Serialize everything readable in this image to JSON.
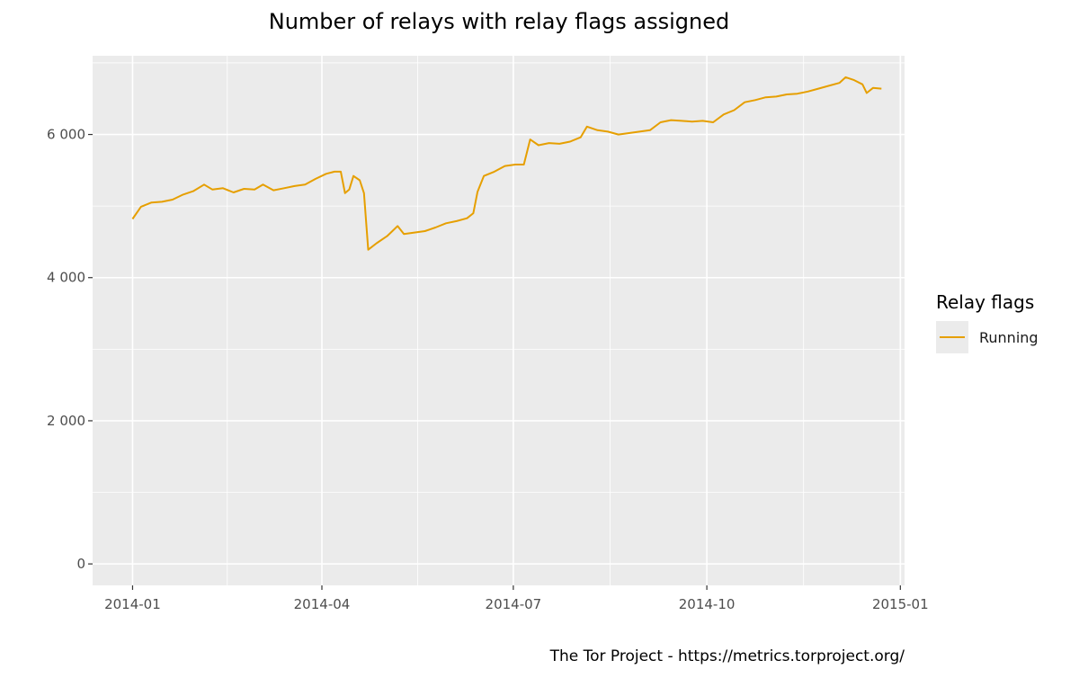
{
  "chart_data": {
    "type": "line",
    "title": "Number of relays with relay flags assigned",
    "xlabel": "",
    "ylabel": "",
    "caption": "The Tor Project - https://metrics.torproject.org/",
    "x_ticks": [
      "2014-01",
      "2014-04",
      "2014-07",
      "2014-10",
      "2015-01"
    ],
    "y_ticks": [
      0,
      2000,
      4000,
      6000
    ],
    "y_tick_labels": [
      "0",
      "2 000",
      "4 000",
      "6 000"
    ],
    "xlim": [
      "2013-12-13",
      "2015-01-03"
    ],
    "ylim": [
      -300,
      7100
    ],
    "grid": true,
    "legend": {
      "title": "Relay flags",
      "position": "right"
    },
    "series": [
      {
        "name": "Running",
        "color": "#E69F00",
        "points": [
          [
            "2014-01-01",
            4820
          ],
          [
            "2014-01-05",
            4990
          ],
          [
            "2014-01-10",
            5050
          ],
          [
            "2014-01-15",
            5060
          ],
          [
            "2014-01-20",
            5090
          ],
          [
            "2014-01-25",
            5160
          ],
          [
            "2014-01-30",
            5210
          ],
          [
            "2014-02-04",
            5300
          ],
          [
            "2014-02-08",
            5230
          ],
          [
            "2014-02-13",
            5250
          ],
          [
            "2014-02-18",
            5190
          ],
          [
            "2014-02-23",
            5240
          ],
          [
            "2014-02-28",
            5230
          ],
          [
            "2014-03-04",
            5300
          ],
          [
            "2014-03-09",
            5220
          ],
          [
            "2014-03-14",
            5250
          ],
          [
            "2014-03-19",
            5280
          ],
          [
            "2014-03-24",
            5300
          ],
          [
            "2014-03-29",
            5380
          ],
          [
            "2014-04-03",
            5450
          ],
          [
            "2014-04-07",
            5480
          ],
          [
            "2014-04-10",
            5480
          ],
          [
            "2014-04-12",
            5180
          ],
          [
            "2014-04-14",
            5230
          ],
          [
            "2014-04-16",
            5420
          ],
          [
            "2014-04-19",
            5360
          ],
          [
            "2014-04-21",
            5180
          ],
          [
            "2014-04-23",
            4390
          ],
          [
            "2014-04-27",
            4480
          ],
          [
            "2014-05-02",
            4580
          ],
          [
            "2014-05-07",
            4720
          ],
          [
            "2014-05-10",
            4610
          ],
          [
            "2014-05-15",
            4630
          ],
          [
            "2014-05-20",
            4650
          ],
          [
            "2014-05-25",
            4700
          ],
          [
            "2014-05-30",
            4760
          ],
          [
            "2014-06-04",
            4790
          ],
          [
            "2014-06-09",
            4830
          ],
          [
            "2014-06-12",
            4900
          ],
          [
            "2014-06-14",
            5200
          ],
          [
            "2014-06-17",
            5420
          ],
          [
            "2014-06-22",
            5480
          ],
          [
            "2014-06-27",
            5560
          ],
          [
            "2014-07-02",
            5580
          ],
          [
            "2014-07-06",
            5580
          ],
          [
            "2014-07-09",
            5930
          ],
          [
            "2014-07-13",
            5850
          ],
          [
            "2014-07-18",
            5880
          ],
          [
            "2014-07-23",
            5870
          ],
          [
            "2014-07-28",
            5900
          ],
          [
            "2014-08-02",
            5960
          ],
          [
            "2014-08-05",
            6110
          ],
          [
            "2014-08-10",
            6060
          ],
          [
            "2014-08-15",
            6040
          ],
          [
            "2014-08-20",
            6000
          ],
          [
            "2014-08-25",
            6020
          ],
          [
            "2014-08-30",
            6040
          ],
          [
            "2014-09-04",
            6060
          ],
          [
            "2014-09-09",
            6170
          ],
          [
            "2014-09-14",
            6200
          ],
          [
            "2014-09-19",
            6190
          ],
          [
            "2014-09-24",
            6180
          ],
          [
            "2014-09-29",
            6190
          ],
          [
            "2014-10-04",
            6170
          ],
          [
            "2014-10-09",
            6280
          ],
          [
            "2014-10-14",
            6340
          ],
          [
            "2014-10-19",
            6450
          ],
          [
            "2014-10-24",
            6480
          ],
          [
            "2014-10-29",
            6520
          ],
          [
            "2014-11-03",
            6530
          ],
          [
            "2014-11-08",
            6560
          ],
          [
            "2014-11-13",
            6570
          ],
          [
            "2014-11-18",
            6600
          ],
          [
            "2014-11-23",
            6640
          ],
          [
            "2014-11-28",
            6680
          ],
          [
            "2014-12-03",
            6720
          ],
          [
            "2014-12-06",
            6800
          ],
          [
            "2014-12-10",
            6760
          ],
          [
            "2014-12-14",
            6700
          ],
          [
            "2014-12-16",
            6580
          ],
          [
            "2014-12-19",
            6650
          ],
          [
            "2014-12-23",
            6640
          ]
        ]
      }
    ]
  }
}
